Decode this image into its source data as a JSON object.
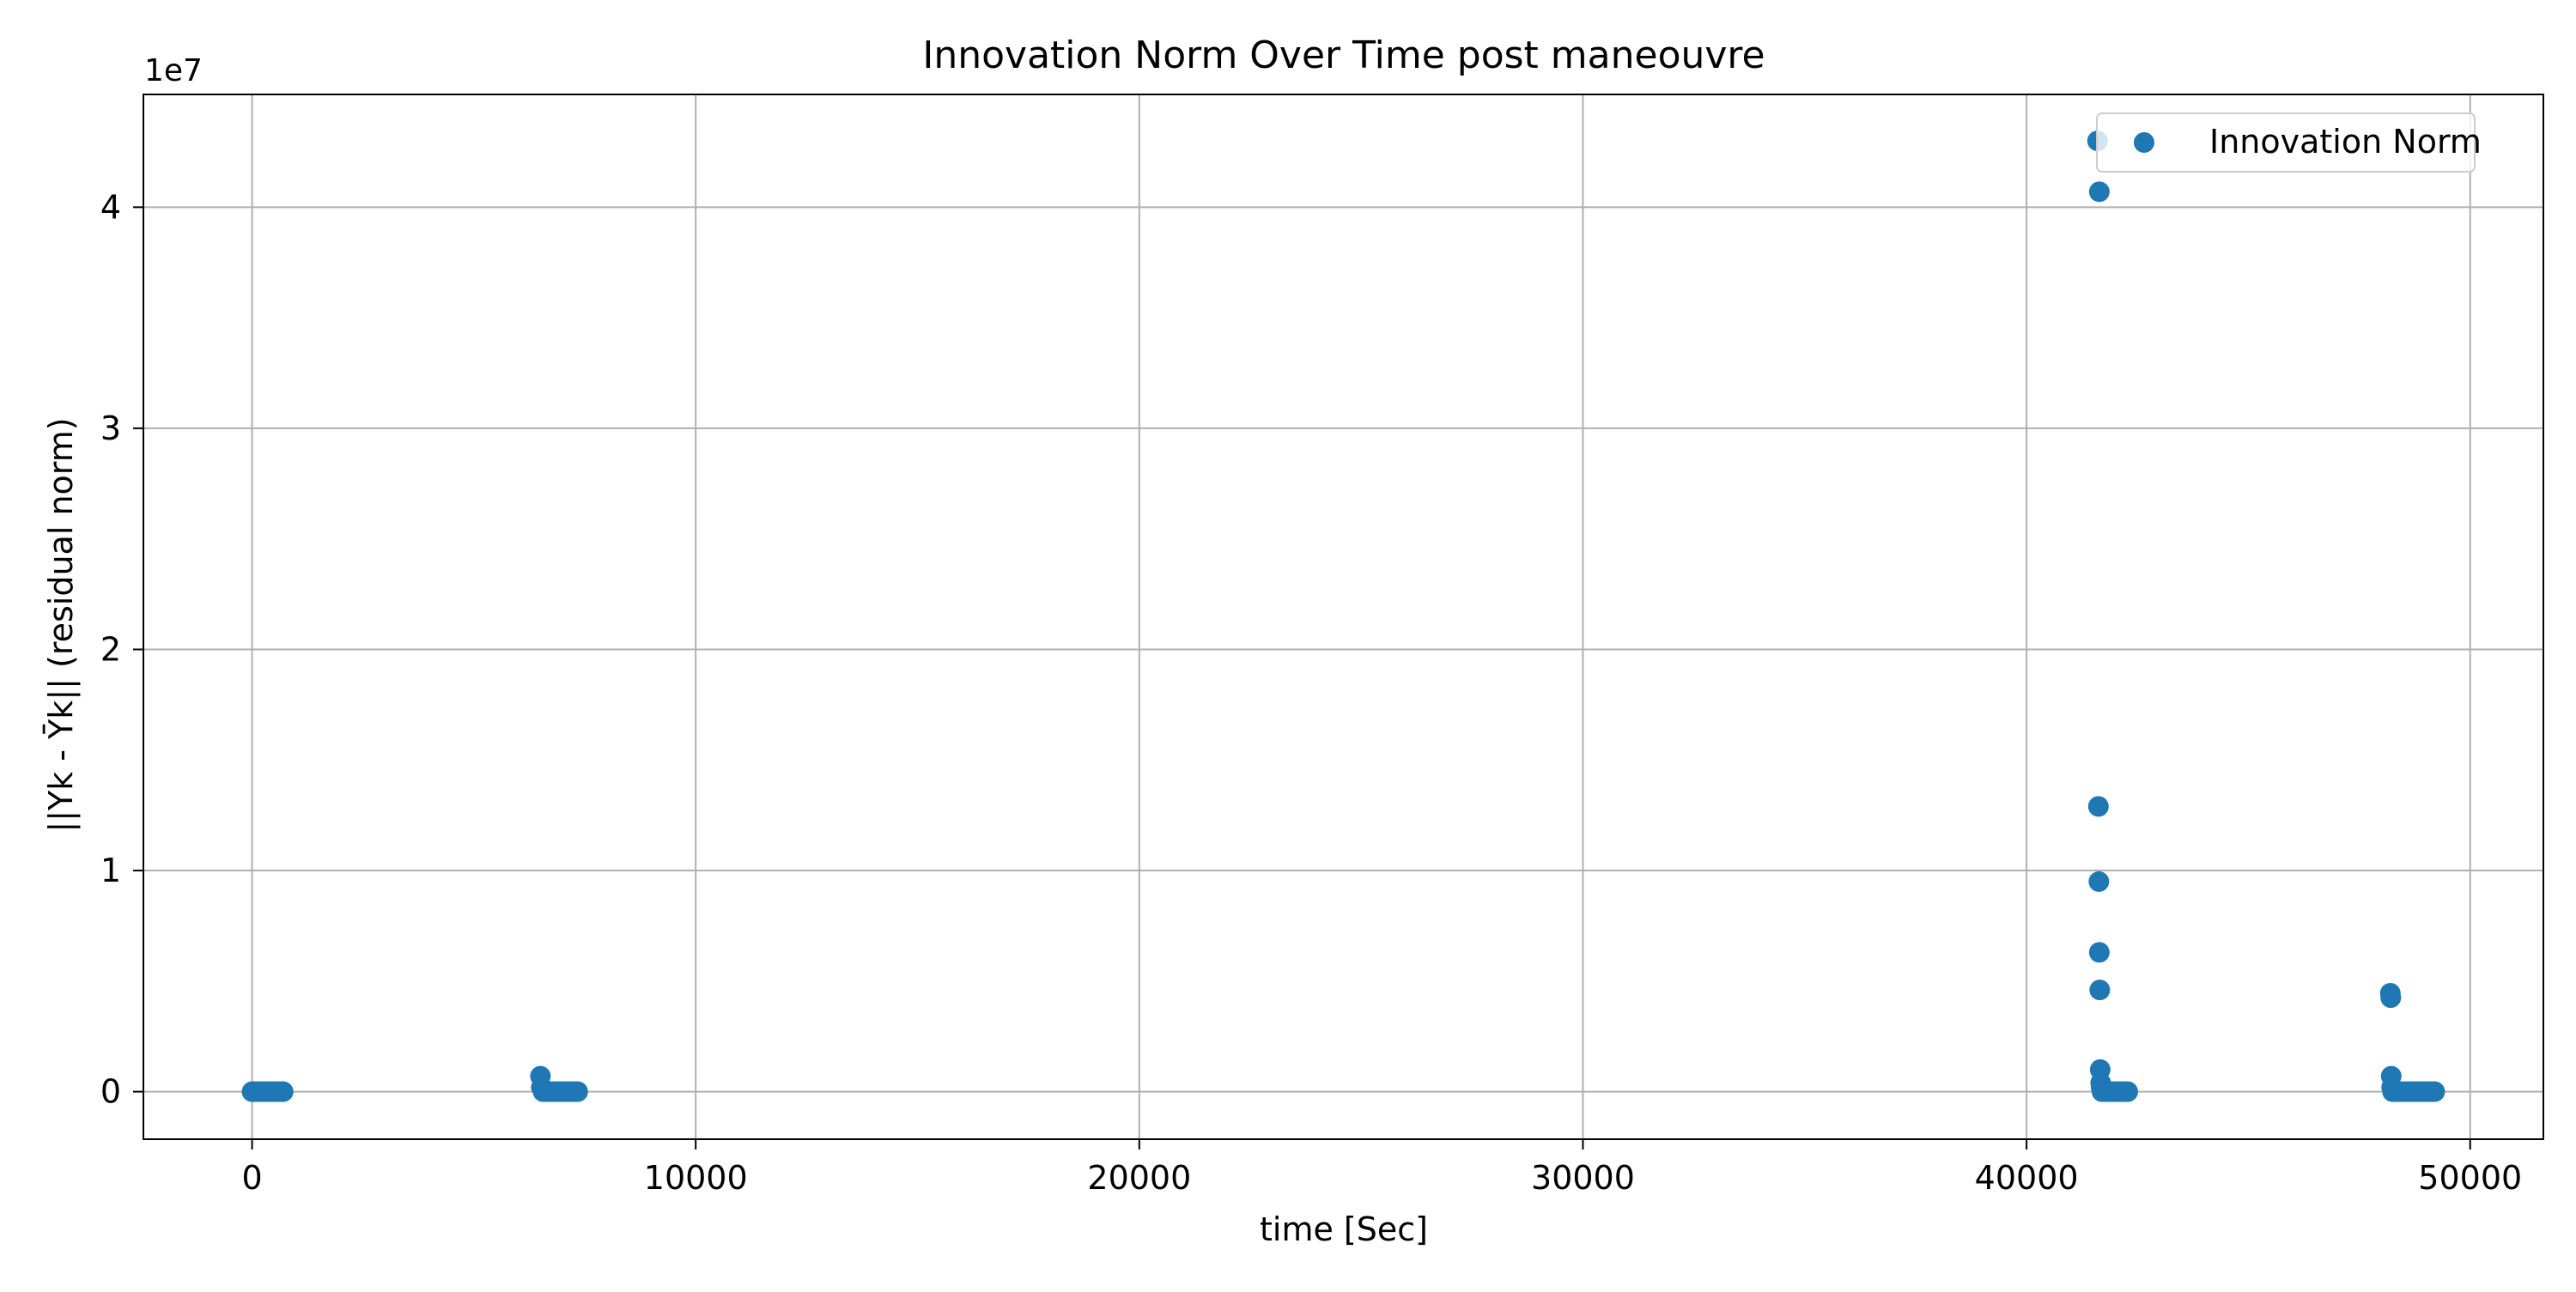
{
  "chart_data": {
    "type": "scatter",
    "title": "Innovation Norm Over Time post maneouvre",
    "xlabel": "time [Sec]",
    "ylabel": "||Yk - Ȳk|| (residual norm)",
    "y_offset_label": "1e7",
    "xlim": [
      -2450,
      51650
    ],
    "ylim": [
      -2150000,
      45100000
    ],
    "xticks": [
      0,
      10000,
      20000,
      30000,
      40000,
      50000
    ],
    "xtick_labels": [
      "0",
      "10000",
      "20000",
      "30000",
      "40000",
      "50000"
    ],
    "yticks": [
      0,
      10000000,
      20000000,
      30000000,
      40000000
    ],
    "ytick_labels": [
      "0",
      "1",
      "2",
      "3",
      "4"
    ],
    "grid": true,
    "legend_position": "top-right",
    "series": [
      {
        "name": "Innovation Norm",
        "color": "#1f77b4",
        "points": [
          [
            0,
            0
          ],
          [
            60,
            0
          ],
          [
            120,
            0
          ],
          [
            180,
            0
          ],
          [
            240,
            0
          ],
          [
            300,
            0
          ],
          [
            360,
            0
          ],
          [
            420,
            0
          ],
          [
            480,
            0
          ],
          [
            540,
            0
          ],
          [
            600,
            0
          ],
          [
            660,
            0
          ],
          [
            700,
            0
          ],
          [
            6500,
            700000
          ],
          [
            6520,
            200000
          ],
          [
            6560,
            0
          ],
          [
            6620,
            0
          ],
          [
            6680,
            0
          ],
          [
            6740,
            0
          ],
          [
            6800,
            0
          ],
          [
            6860,
            0
          ],
          [
            6920,
            0
          ],
          [
            6980,
            0
          ],
          [
            7040,
            0
          ],
          [
            7100,
            0
          ],
          [
            7160,
            0
          ],
          [
            7220,
            0
          ],
          [
            7280,
            0
          ],
          [
            7340,
            0
          ],
          [
            41600,
            43000000
          ],
          [
            41640,
            40700000
          ],
          [
            41620,
            12900000
          ],
          [
            41630,
            9500000
          ],
          [
            41640,
            6300000
          ],
          [
            41650,
            4600000
          ],
          [
            41660,
            1000000
          ],
          [
            41670,
            400000
          ],
          [
            41680,
            200000
          ],
          [
            41700,
            0
          ],
          [
            41760,
            0
          ],
          [
            41820,
            0
          ],
          [
            41880,
            0
          ],
          [
            41940,
            0
          ],
          [
            42000,
            0
          ],
          [
            42060,
            0
          ],
          [
            42120,
            0
          ],
          [
            42180,
            0
          ],
          [
            42240,
            0
          ],
          [
            42280,
            0
          ],
          [
            48200,
            4450000
          ],
          [
            48210,
            4250000
          ],
          [
            48220,
            700000
          ],
          [
            48230,
            200000
          ],
          [
            48250,
            0
          ],
          [
            48310,
            0
          ],
          [
            48370,
            0
          ],
          [
            48430,
            0
          ],
          [
            48490,
            0
          ],
          [
            48550,
            0
          ],
          [
            48610,
            0
          ],
          [
            48670,
            0
          ],
          [
            48730,
            0
          ],
          [
            48790,
            0
          ],
          [
            48850,
            0
          ],
          [
            48910,
            0
          ],
          [
            48970,
            0
          ],
          [
            49030,
            0
          ],
          [
            49090,
            0
          ],
          [
            49150,
            0
          ],
          [
            49200,
            0
          ]
        ]
      }
    ]
  }
}
